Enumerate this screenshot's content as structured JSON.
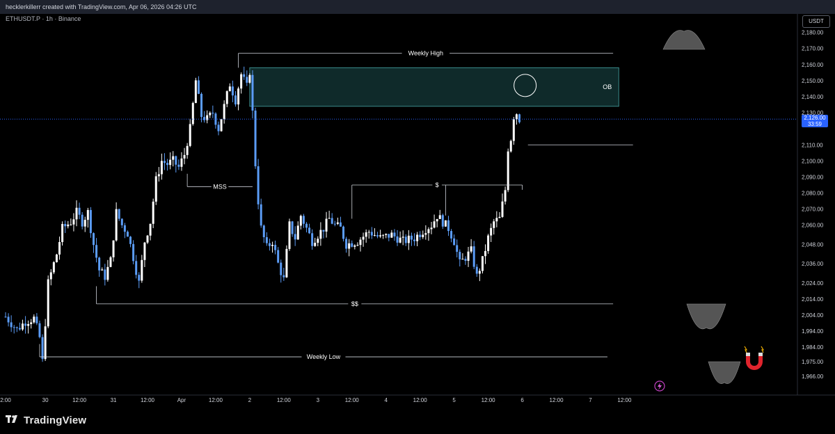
{
  "header": {
    "attribution": "hecklerkillerr created with TradingView.com, Apr 06, 2026 04:26 UTC",
    "symbol": "ETHUSDT.P · 1h · Binance"
  },
  "currency_button": "USDT",
  "last_price": {
    "value": "2,126.00",
    "countdown": "33:59",
    "price": 2126
  },
  "footer": {
    "brand": "TradingView"
  },
  "colors": {
    "bull": "#ffffff",
    "bear": "#5b9cf6",
    "zone": "#0f2a2a",
    "zone_border": "#3a8a8a",
    "price_tag": "#2962ff"
  },
  "icons": [
    "tradingview-logo-icon",
    "magnet-icon",
    "flash-icon"
  ],
  "chart_data": {
    "type": "candlestick",
    "timeframe": "1h",
    "ylim": [
      1962,
      2182
    ],
    "y_ticks": [
      2180,
      2170,
      2160,
      2150,
      2140,
      2130,
      2110,
      2100,
      2090,
      2080,
      2070,
      2060,
      2048,
      2036,
      2024,
      2014,
      2004,
      1994,
      1984,
      1975,
      1966
    ],
    "y_tick_labels": [
      "2,180.00",
      "2,170.00",
      "2,160.00",
      "2,150.00",
      "2,140.00",
      "2,130.00",
      "2,110.00",
      "2,100.00",
      "2,090.00",
      "2,080.00",
      "2,070.00",
      "2,060.00",
      "2,048.00",
      "2,036.00",
      "2,024.00",
      "2,014.00",
      "2,004.00",
      "1,994.00",
      "1,984.00",
      "1,975.00",
      "1,966.00"
    ],
    "x_ticks": [
      {
        "label": "2:00",
        "pos": 0
      },
      {
        "label": "30",
        "pos": 14
      },
      {
        "label": "12:00",
        "pos": 26
      },
      {
        "label": "31",
        "pos": 38
      },
      {
        "label": "12:00",
        "pos": 50
      },
      {
        "label": "Apr",
        "pos": 62
      },
      {
        "label": "12:00",
        "pos": 74
      },
      {
        "label": "2",
        "pos": 86
      },
      {
        "label": "12:00",
        "pos": 98
      },
      {
        "label": "3",
        "pos": 110
      },
      {
        "label": "12:00",
        "pos": 122
      },
      {
        "label": "4",
        "pos": 134
      },
      {
        "label": "12:00",
        "pos": 146
      },
      {
        "label": "5",
        "pos": 158
      },
      {
        "label": "12:00",
        "pos": 170
      },
      {
        "label": "6",
        "pos": 182
      },
      {
        "label": "12:00",
        "pos": 194
      },
      {
        "label": "7",
        "pos": 206
      },
      {
        "label": "12:00",
        "pos": 218
      }
    ],
    "anchors": [
      [
        0,
        2003
      ],
      [
        4,
        1995
      ],
      [
        7,
        2000
      ],
      [
        10,
        2002
      ],
      [
        12,
        1990
      ],
      [
        13,
        1975
      ],
      [
        15,
        2024
      ],
      [
        18,
        2042
      ],
      [
        20,
        2058
      ],
      [
        23,
        2062
      ],
      [
        25,
        2068
      ],
      [
        27,
        2062
      ],
      [
        29,
        2068
      ],
      [
        31,
        2048
      ],
      [
        33,
        2032
      ],
      [
        35,
        2028
      ],
      [
        37,
        2038
      ],
      [
        39,
        2068
      ],
      [
        41,
        2060
      ],
      [
        43,
        2055
      ],
      [
        45,
        2040
      ],
      [
        47,
        2024
      ],
      [
        49,
        2050
      ],
      [
        51,
        2062
      ],
      [
        53,
        2088
      ],
      [
        55,
        2100
      ],
      [
        57,
        2098
      ],
      [
        59,
        2100
      ],
      [
        61,
        2096
      ],
      [
        63,
        2104
      ],
      [
        65,
        2120
      ],
      [
        67,
        2150
      ],
      [
        69,
        2128
      ],
      [
        71,
        2126
      ],
      [
        73,
        2130
      ],
      [
        75,
        2120
      ],
      [
        77,
        2134
      ],
      [
        79,
        2148
      ],
      [
        81,
        2138
      ],
      [
        83,
        2154
      ],
      [
        85,
        2146
      ],
      [
        86,
        2156
      ],
      [
        87,
        2130
      ],
      [
        88,
        2098
      ],
      [
        89,
        2075
      ],
      [
        90,
        2058
      ],
      [
        92,
        2046
      ],
      [
        94,
        2050
      ],
      [
        96,
        2036
      ],
      [
        98,
        2026
      ],
      [
        100,
        2060
      ],
      [
        102,
        2052
      ],
      [
        104,
        2066
      ],
      [
        106,
        2058
      ],
      [
        108,
        2050
      ],
      [
        110,
        2054
      ],
      [
        112,
        2058
      ],
      [
        114,
        2064
      ],
      [
        116,
        2060
      ],
      [
        118,
        2058
      ],
      [
        120,
        2048
      ],
      [
        124,
        2050
      ],
      [
        128,
        2056
      ],
      [
        132,
        2052
      ],
      [
        136,
        2054
      ],
      [
        140,
        2050
      ],
      [
        144,
        2052
      ],
      [
        148,
        2058
      ],
      [
        150,
        2060
      ],
      [
        152,
        2066
      ],
      [
        154,
        2062
      ],
      [
        156,
        2058
      ],
      [
        158,
        2050
      ],
      [
        160,
        2036
      ],
      [
        162,
        2040
      ],
      [
        164,
        2044
      ],
      [
        166,
        2028
      ],
      [
        168,
        2038
      ],
      [
        170,
        2052
      ],
      [
        172,
        2062
      ],
      [
        174,
        2064
      ],
      [
        176,
        2082
      ],
      [
        177,
        2108
      ],
      [
        178,
        2114
      ],
      [
        179,
        2128
      ],
      [
        180,
        2130
      ],
      [
        181,
        2126
      ]
    ],
    "zones": [
      {
        "label": "OB",
        "x0": 86,
        "x1": 216,
        "y0": 2134,
        "y1": 2158
      }
    ],
    "levels": [
      {
        "label": "Weekly High",
        "x0": 82,
        "x1": 214,
        "y": 2167
      },
      {
        "label": "MSS",
        "x0": 64,
        "x1": 87,
        "y": 2084
      },
      {
        "label": "$",
        "x0": 122,
        "x1": 182,
        "y": 2085
      },
      {
        "label": "$$",
        "x0": 32,
        "x1": 214,
        "y": 2011
      },
      {
        "label": "Weekly Low",
        "x0": 12,
        "x1": 212,
        "y": 1978
      },
      {
        "label": "",
        "x0": 184,
        "x1": 221,
        "y": 2110
      }
    ],
    "annotations": [
      {
        "type": "circle",
        "x": 183,
        "y": 2147
      }
    ]
  }
}
